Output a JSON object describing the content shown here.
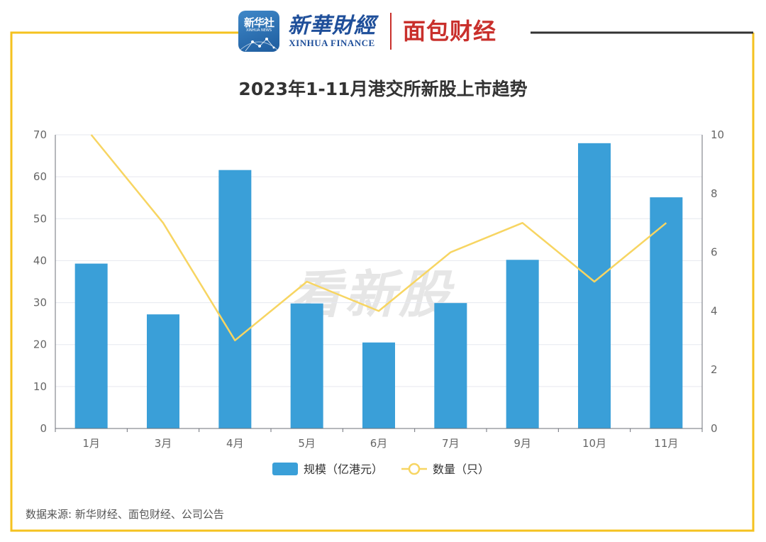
{
  "header": {
    "xinhua_badge_text": "新华社",
    "xinhua_badge_sub": "XINHUA NEWS",
    "xinhua_finance_cn": "新華財經",
    "xinhua_finance_en": "XINHUA FINANCE",
    "mianbao_brand": "面包财经",
    "mianbao_reg": "®"
  },
  "watermark": "看新股",
  "source_note": "数据来源: 新华财经、面包财经、公司公告",
  "colors": {
    "bar": "#3a9fd8",
    "line": "#f7d562",
    "frame_yellow": "#f4c21f",
    "frame_dark": "#333333",
    "axis_text": "#666666",
    "grid": "#e6e8ef"
  },
  "chart_data": {
    "type": "bar",
    "title": "2023年1-11月港交所新股上市趋势",
    "categories": [
      "1月",
      "3月",
      "4月",
      "5月",
      "6月",
      "7月",
      "9月",
      "10月",
      "11月"
    ],
    "series": [
      {
        "name": "规模（亿港元）",
        "type": "bar",
        "axis": "left",
        "values": [
          39.3,
          27.2,
          61.6,
          29.8,
          20.5,
          29.9,
          40.2,
          68,
          55.1
        ]
      },
      {
        "name": "数量（只）",
        "type": "line",
        "axis": "right",
        "values": [
          10,
          7,
          3,
          5,
          4,
          6,
          7,
          5,
          7
        ]
      }
    ],
    "y_left": {
      "min": 0,
      "max": 70,
      "ticks": [
        0,
        10,
        20,
        30,
        40,
        50,
        60,
        70
      ]
    },
    "y_right": {
      "min": 0,
      "max": 10,
      "ticks": [
        0,
        2,
        4,
        6,
        8,
        10
      ]
    },
    "grid": true,
    "legend_position": "bottom"
  }
}
